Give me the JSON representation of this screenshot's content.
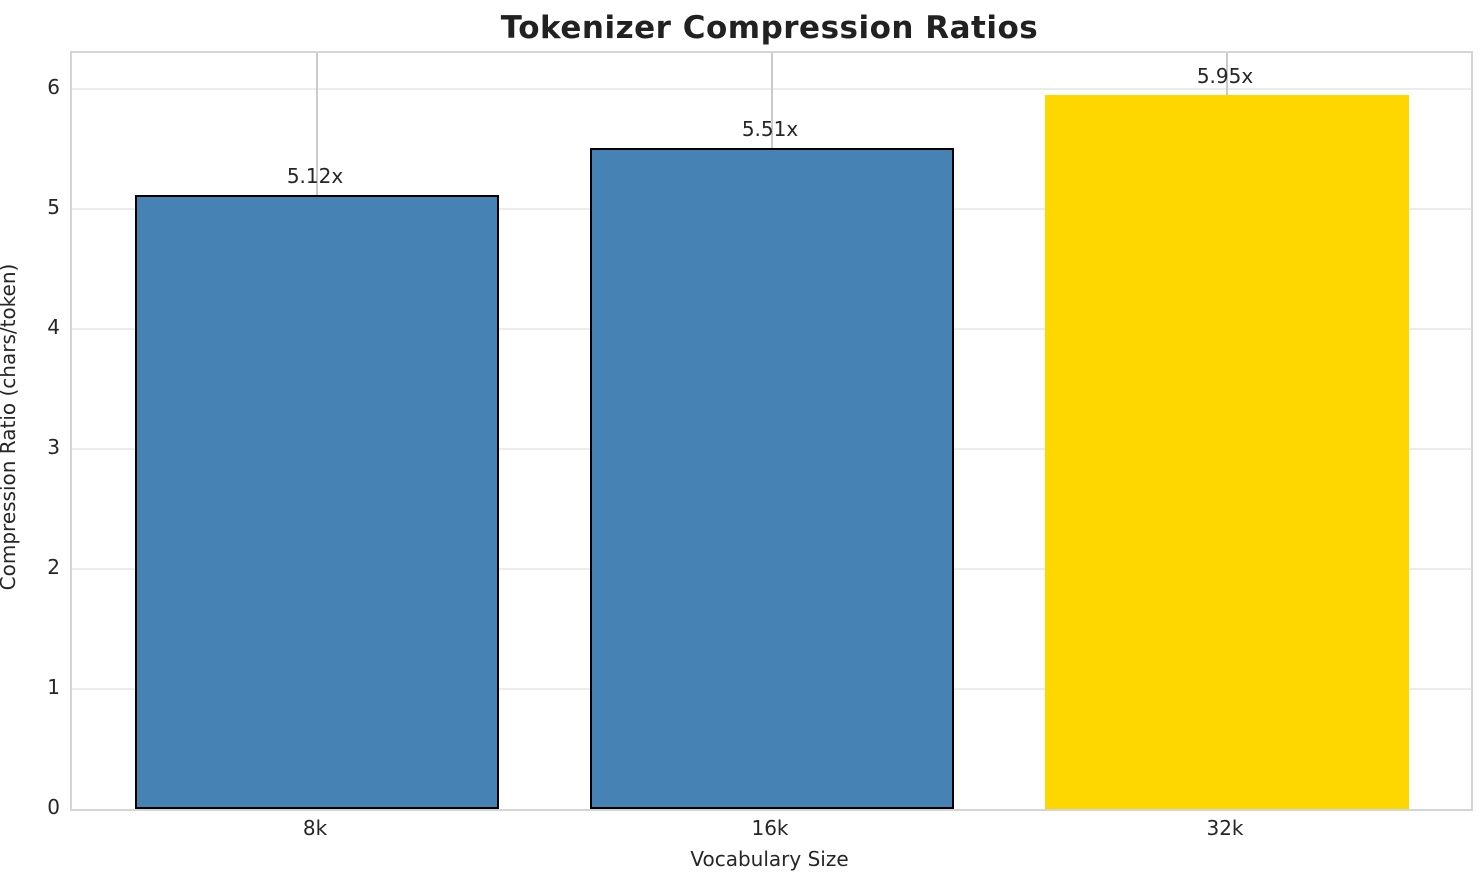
{
  "chart_data": {
    "type": "bar",
    "title": "Tokenizer Compression Ratios",
    "xlabel": "Vocabulary Size",
    "ylabel": "Compression Ratio (chars/token)",
    "categories": [
      "8k",
      "16k",
      "32k"
    ],
    "values": [
      5.12,
      5.51,
      5.95
    ],
    "bar_labels": [
      "5.12x",
      "5.51x",
      "5.95x"
    ],
    "bar_colors": [
      "#4682B4",
      "#4682B4",
      "#FFD700"
    ],
    "bar_edge_colors": [
      "#000000",
      "#000000",
      "none"
    ],
    "highlight_color": "#FFD700",
    "series_color": "#4682B4",
    "ylim": [
      0,
      6.3
    ],
    "yticks": [
      0,
      1,
      2,
      3,
      4,
      5,
      6
    ],
    "grid": true,
    "grid_h_color": "#ececec",
    "grid_v_color": "#cbcbcb",
    "spine_color": "#d5d5d5",
    "text_color": "#262626",
    "legend": false
  }
}
